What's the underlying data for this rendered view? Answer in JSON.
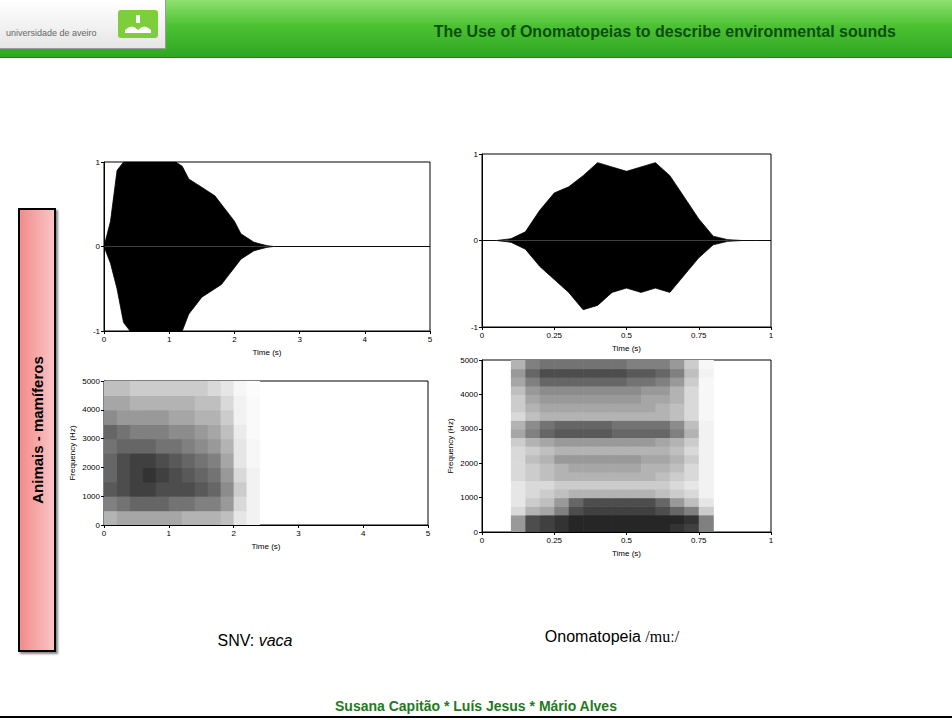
{
  "header": {
    "institution": "universidade de aveiro",
    "title": "The Use of Onomatopeias to describe environmental sounds"
  },
  "side_label": "Animais - mamíferos",
  "captions": [
    {
      "text": "SNV:",
      "emph": "vaca"
    },
    {
      "text": "Onomatopeia",
      "ipa": "/muː/"
    }
  ],
  "footer": "Susana Capitão * Luís Jesus * Mário Alves",
  "chart_data": [
    {
      "type": "waveform",
      "xlabel": "Time (s)",
      "color": "#000000",
      "grid": false,
      "x": [
        0,
        0.1,
        0.2,
        0.3,
        0.4,
        0.5,
        0.6,
        0.7,
        0.8,
        0.9,
        1,
        1.1,
        1.2,
        1.3,
        1.4,
        1.5,
        1.6,
        1.7,
        1.8,
        1.9,
        2,
        2.1,
        2.2,
        2.3,
        2.4,
        2.5,
        2.6,
        5
      ],
      "upper": [
        0,
        0.3,
        0.9,
        1,
        1,
        1,
        1,
        1,
        1,
        1,
        1,
        1,
        0.95,
        0.8,
        0.75,
        0.7,
        0.65,
        0.6,
        0.5,
        0.4,
        0.3,
        0.15,
        0.1,
        0.05,
        0.03,
        0.01,
        0,
        0
      ],
      "lower": [
        0,
        -0.2,
        -0.5,
        -0.9,
        -1,
        -1,
        -1,
        -1,
        -1,
        -1,
        -1,
        -1,
        -1,
        -0.8,
        -0.7,
        -0.6,
        -0.55,
        -0.5,
        -0.45,
        -0.35,
        -0.25,
        -0.15,
        -0.1,
        -0.05,
        -0.03,
        -0.01,
        0,
        0
      ],
      "xlim": [
        0,
        5
      ],
      "xticks": [
        0,
        1,
        2,
        3,
        4,
        5
      ],
      "ylim": [
        -1,
        1
      ],
      "yticks": [
        -1,
        0,
        1
      ]
    },
    {
      "type": "spectrogram",
      "xlabel": "Time (s)",
      "ylabel": "Frequency (Hz)",
      "grid": false,
      "time_bins": [
        0,
        0.2,
        0.4,
        0.6,
        0.8,
        1,
        1.2,
        1.4,
        1.6,
        1.8,
        2,
        2.2,
        2.4
      ],
      "freq_bins": [
        0,
        500,
        1000,
        1500,
        2000,
        2500,
        3000,
        3500,
        4000,
        4500,
        5000
      ],
      "intensity": [
        [
          0.3,
          0.35,
          0.35,
          0.35,
          0.35,
          0.35,
          0.3,
          0.3,
          0.3,
          0.25,
          0.1,
          0.05
        ],
        [
          0.5,
          0.55,
          0.6,
          0.6,
          0.6,
          0.55,
          0.55,
          0.5,
          0.5,
          0.4,
          0.15,
          0.05
        ],
        [
          0.65,
          0.7,
          0.75,
          0.75,
          0.7,
          0.7,
          0.7,
          0.65,
          0.6,
          0.45,
          0.2,
          0.05
        ],
        [
          0.6,
          0.7,
          0.75,
          0.8,
          0.75,
          0.7,
          0.65,
          0.6,
          0.55,
          0.4,
          0.15,
          0.05
        ],
        [
          0.6,
          0.7,
          0.75,
          0.75,
          0.7,
          0.65,
          0.6,
          0.55,
          0.5,
          0.35,
          0.1,
          0.03
        ],
        [
          0.55,
          0.6,
          0.6,
          0.6,
          0.55,
          0.55,
          0.5,
          0.45,
          0.4,
          0.3,
          0.1,
          0.03
        ],
        [
          0.6,
          0.55,
          0.5,
          0.5,
          0.5,
          0.45,
          0.45,
          0.4,
          0.35,
          0.25,
          0.08,
          0.02
        ],
        [
          0.45,
          0.4,
          0.4,
          0.4,
          0.4,
          0.35,
          0.35,
          0.3,
          0.3,
          0.2,
          0.05,
          0.02
        ],
        [
          0.35,
          0.35,
          0.3,
          0.3,
          0.3,
          0.3,
          0.3,
          0.25,
          0.25,
          0.15,
          0.05,
          0.02
        ],
        [
          0.25,
          0.25,
          0.2,
          0.2,
          0.2,
          0.2,
          0.2,
          0.2,
          0.15,
          0.1,
          0.03,
          0.01
        ]
      ],
      "xlim": [
        0,
        5
      ],
      "xticks": [
        0,
        1,
        2,
        3,
        4,
        5
      ],
      "ylim": [
        0,
        5000
      ],
      "yticks": [
        0,
        1000,
        2000,
        3000,
        4000,
        5000
      ]
    },
    {
      "type": "waveform",
      "xlabel": "Time (s)",
      "color": "#000000",
      "grid": false,
      "x": [
        0,
        0.05,
        0.1,
        0.15,
        0.2,
        0.25,
        0.3,
        0.35,
        0.4,
        0.45,
        0.5,
        0.55,
        0.6,
        0.65,
        0.7,
        0.75,
        0.8,
        0.85,
        0.9,
        0.95,
        1
      ],
      "upper": [
        0,
        0,
        0.02,
        0.1,
        0.35,
        0.55,
        0.62,
        0.75,
        0.9,
        0.85,
        0.8,
        0.85,
        0.9,
        0.75,
        0.5,
        0.25,
        0.05,
        0.01,
        0,
        0,
        0
      ],
      "lower": [
        0,
        0,
        -0.02,
        -0.1,
        -0.3,
        -0.45,
        -0.6,
        -0.8,
        -0.75,
        -0.6,
        -0.55,
        -0.6,
        -0.55,
        -0.6,
        -0.4,
        -0.2,
        -0.05,
        -0.01,
        0,
        0,
        0
      ],
      "xlim": [
        0,
        1
      ],
      "xticks": [
        0,
        0.25,
        0.5,
        0.75,
        1
      ],
      "ylim": [
        -1,
        1
      ],
      "yticks": [
        -1,
        0,
        1
      ]
    },
    {
      "type": "spectrogram",
      "xlabel": "Time (s)",
      "ylabel": "Frequency (Hz)",
      "grid": false,
      "time_bins": [
        0.1,
        0.15,
        0.2,
        0.25,
        0.3,
        0.35,
        0.4,
        0.45,
        0.5,
        0.55,
        0.6,
        0.65,
        0.7,
        0.75,
        0.8
      ],
      "freq_bins": [
        0,
        250,
        500,
        750,
        1000,
        1250,
        1500,
        1750,
        2000,
        2250,
        2500,
        2750,
        3000,
        3250,
        3500,
        3750,
        4000,
        4250,
        4500,
        4750,
        5000
      ],
      "intensity": [
        [
          0.4,
          0.7,
          0.75,
          0.8,
          0.85,
          0.85,
          0.85,
          0.85,
          0.85,
          0.85,
          0.85,
          0.8,
          0.75,
          0.5
        ],
        [
          0.4,
          0.7,
          0.75,
          0.8,
          0.85,
          0.85,
          0.85,
          0.85,
          0.85,
          0.85,
          0.85,
          0.85,
          0.8,
          0.5
        ],
        [
          0.15,
          0.3,
          0.35,
          0.5,
          0.7,
          0.75,
          0.75,
          0.75,
          0.75,
          0.75,
          0.7,
          0.6,
          0.5,
          0.2
        ],
        [
          0.1,
          0.2,
          0.25,
          0.4,
          0.6,
          0.7,
          0.7,
          0.7,
          0.7,
          0.7,
          0.6,
          0.4,
          0.25,
          0.1
        ],
        [
          0.1,
          0.15,
          0.2,
          0.25,
          0.3,
          0.3,
          0.3,
          0.3,
          0.3,
          0.3,
          0.25,
          0.2,
          0.15,
          0.05
        ],
        [
          0.1,
          0.15,
          0.15,
          0.2,
          0.2,
          0.2,
          0.2,
          0.2,
          0.2,
          0.2,
          0.2,
          0.15,
          0.1,
          0.05
        ],
        [
          0.15,
          0.2,
          0.25,
          0.3,
          0.3,
          0.3,
          0.3,
          0.3,
          0.3,
          0.3,
          0.25,
          0.2,
          0.15,
          0.05
        ],
        [
          0.15,
          0.2,
          0.25,
          0.3,
          0.35,
          0.35,
          0.35,
          0.35,
          0.35,
          0.3,
          0.3,
          0.25,
          0.15,
          0.05
        ],
        [
          0.15,
          0.25,
          0.3,
          0.4,
          0.4,
          0.4,
          0.4,
          0.4,
          0.4,
          0.35,
          0.35,
          0.3,
          0.2,
          0.05
        ],
        [
          0.15,
          0.2,
          0.25,
          0.3,
          0.3,
          0.3,
          0.3,
          0.3,
          0.3,
          0.3,
          0.3,
          0.25,
          0.15,
          0.05
        ],
        [
          0.2,
          0.3,
          0.35,
          0.4,
          0.4,
          0.4,
          0.4,
          0.4,
          0.4,
          0.4,
          0.35,
          0.3,
          0.2,
          0.05
        ],
        [
          0.35,
          0.5,
          0.6,
          0.65,
          0.65,
          0.65,
          0.65,
          0.6,
          0.6,
          0.6,
          0.6,
          0.5,
          0.3,
          0.05
        ],
        [
          0.3,
          0.45,
          0.55,
          0.6,
          0.6,
          0.6,
          0.6,
          0.55,
          0.55,
          0.55,
          0.55,
          0.45,
          0.25,
          0.05
        ],
        [
          0.15,
          0.25,
          0.3,
          0.3,
          0.3,
          0.3,
          0.3,
          0.3,
          0.3,
          0.3,
          0.3,
          0.25,
          0.15,
          0.03
        ],
        [
          0.2,
          0.3,
          0.35,
          0.35,
          0.35,
          0.35,
          0.35,
          0.35,
          0.35,
          0.35,
          0.3,
          0.25,
          0.15,
          0.03
        ],
        [
          0.2,
          0.35,
          0.4,
          0.4,
          0.4,
          0.4,
          0.4,
          0.4,
          0.4,
          0.35,
          0.35,
          0.3,
          0.15,
          0.03
        ],
        [
          0.25,
          0.4,
          0.45,
          0.45,
          0.45,
          0.45,
          0.45,
          0.45,
          0.45,
          0.4,
          0.4,
          0.3,
          0.15,
          0.03
        ],
        [
          0.35,
          0.5,
          0.6,
          0.6,
          0.6,
          0.6,
          0.6,
          0.6,
          0.55,
          0.55,
          0.5,
          0.4,
          0.2,
          0.03
        ],
        [
          0.4,
          0.6,
          0.7,
          0.7,
          0.7,
          0.7,
          0.7,
          0.7,
          0.65,
          0.65,
          0.6,
          0.5,
          0.25,
          0.05
        ],
        [
          0.3,
          0.5,
          0.55,
          0.55,
          0.55,
          0.55,
          0.55,
          0.55,
          0.5,
          0.5,
          0.5,
          0.4,
          0.2,
          0.03
        ]
      ],
      "xlim": [
        0,
        1
      ],
      "xticks": [
        0,
        0.25,
        0.5,
        0.75,
        1
      ],
      "ylim": [
        0,
        5000
      ],
      "yticks": [
        0,
        1000,
        2000,
        3000,
        4000,
        5000
      ]
    }
  ]
}
